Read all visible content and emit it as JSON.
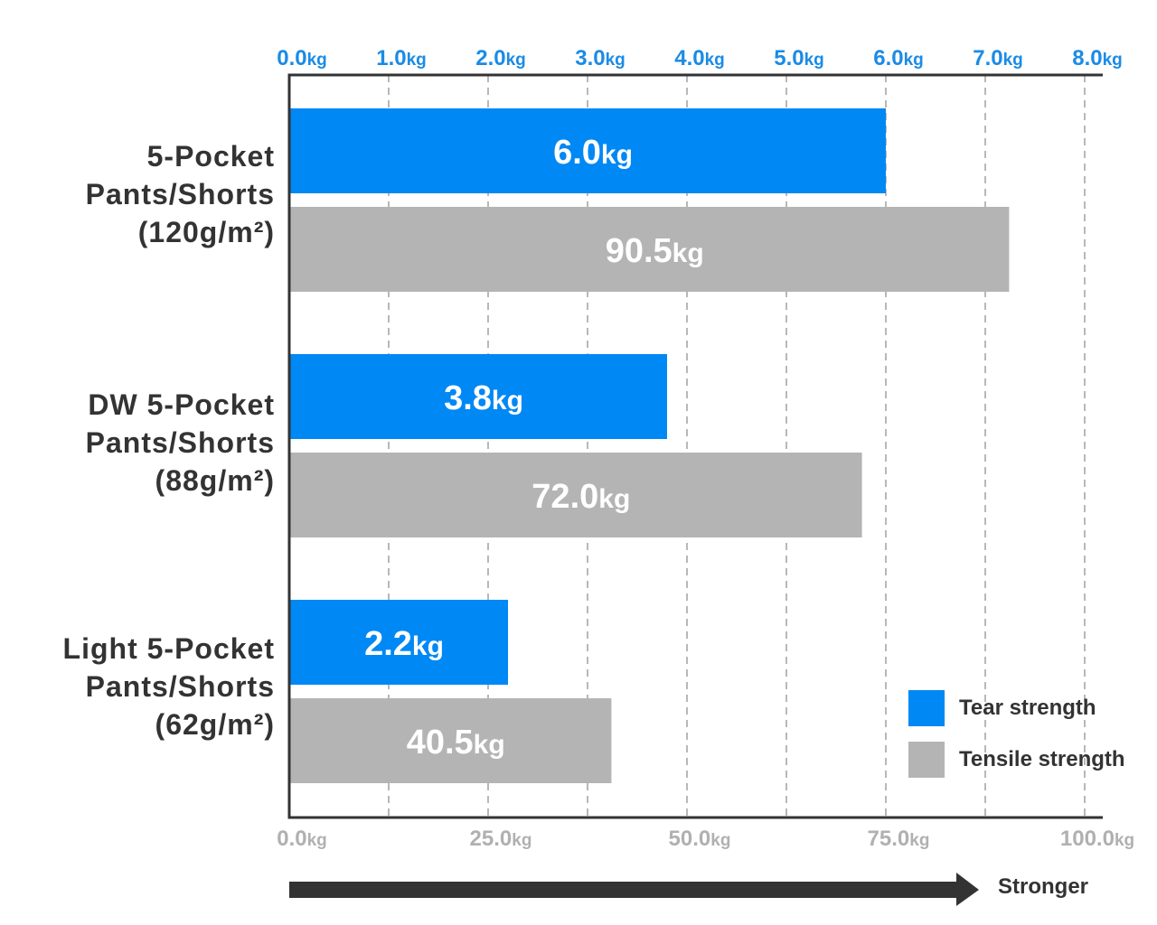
{
  "chart_data": {
    "type": "bar",
    "orientation": "horizontal",
    "categories": [
      {
        "lines": [
          "5-Pocket",
          "Pants/Shorts",
          "(120g/m²)"
        ]
      },
      {
        "lines": [
          "DW 5-Pocket",
          "Pants/Shorts",
          "(88g/m²)"
        ]
      },
      {
        "lines": [
          "Light 5-Pocket",
          "Pants/Shorts",
          "(62g/m²)"
        ]
      }
    ],
    "series": [
      {
        "name": "Tear strength",
        "axis": "top",
        "color": "#0088f5",
        "values": [
          6.0,
          3.8,
          2.2
        ],
        "labels": [
          {
            "num": "6.0",
            "unit": "kg"
          },
          {
            "num": "3.8",
            "unit": "kg"
          },
          {
            "num": "2.2",
            "unit": "kg"
          }
        ]
      },
      {
        "name": "Tensile strength",
        "axis": "bottom",
        "color": "#b4b4b4",
        "values": [
          90.5,
          72.0,
          40.5
        ],
        "labels": [
          {
            "num": "90.5",
            "unit": "kg"
          },
          {
            "num": "72.0",
            "unit": "kg"
          },
          {
            "num": "40.5",
            "unit": "kg"
          }
        ]
      }
    ],
    "top_axis": {
      "range": [
        0,
        8
      ],
      "color": "#1a8be6",
      "ticks": [
        {
          "num": "0.0",
          "unit": "kg",
          "value": 0
        },
        {
          "num": "1.0",
          "unit": "kg",
          "value": 1
        },
        {
          "num": "2.0",
          "unit": "kg",
          "value": 2
        },
        {
          "num": "3.0",
          "unit": "kg",
          "value": 3
        },
        {
          "num": "4.0",
          "unit": "kg",
          "value": 4
        },
        {
          "num": "5.0",
          "unit": "kg",
          "value": 5
        },
        {
          "num": "6.0",
          "unit": "kg",
          "value": 6
        },
        {
          "num": "7.0",
          "unit": "kg",
          "value": 7
        },
        {
          "num": "8.0",
          "unit": "kg",
          "value": 8
        }
      ]
    },
    "bottom_axis": {
      "range": [
        0,
        100
      ],
      "color": "#b0b0b0",
      "ticks": [
        {
          "num": "0.0",
          "unit": "kg",
          "value": 0
        },
        {
          "num": "25.0",
          "unit": "kg",
          "value": 25
        },
        {
          "num": "50.0",
          "unit": "kg",
          "value": 50
        },
        {
          "num": "75.0",
          "unit": "kg",
          "value": 75
        },
        {
          "num": "100.0",
          "unit": "kg",
          "value": 100
        }
      ]
    },
    "grid": true,
    "legend": {
      "position": "bottom-right"
    },
    "direction_label": "Stronger",
    "title": "",
    "xlabel": "",
    "ylabel": ""
  },
  "colors": {
    "text": "#333333",
    "axis_line": "#333333",
    "grid": "#b8b8b8",
    "arrow": "#333333"
  }
}
